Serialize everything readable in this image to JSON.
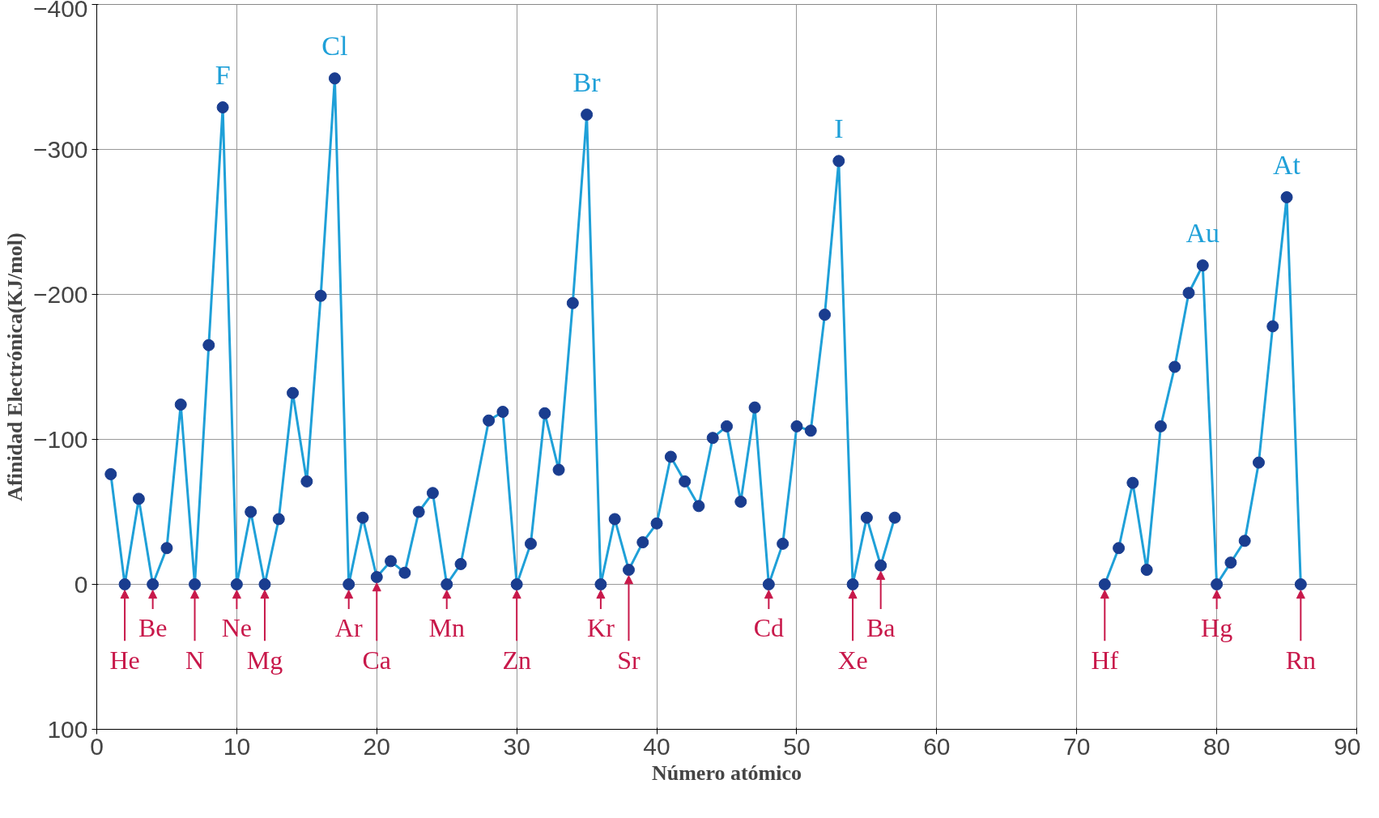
{
  "chart_data": {
    "type": "line",
    "xlabel": "Número atómico",
    "ylabel": "Afinidad Electrónica(KJ/mol)",
    "x": [
      1,
      2,
      3,
      4,
      5,
      6,
      7,
      8,
      9,
      10,
      11,
      12,
      13,
      14,
      15,
      16,
      17,
      18,
      19,
      20,
      21,
      22,
      23,
      24,
      25,
      26,
      28,
      29,
      30,
      31,
      32,
      33,
      34,
      35,
      36,
      37,
      38,
      39,
      40,
      41,
      42,
      43,
      44,
      45,
      46,
      47,
      48,
      49,
      50,
      51,
      52,
      53,
      54,
      55,
      56,
      57,
      64,
      72,
      73,
      74,
      75,
      76,
      77,
      78,
      79,
      80,
      81,
      82,
      83,
      84,
      85,
      86
    ],
    "series": [
      {
        "color": "#1fa0d8",
        "values": [
          -76,
          0,
          -59,
          0,
          -25,
          -124,
          0,
          -165,
          -329,
          0,
          -50,
          0,
          -45,
          -132,
          -71,
          -199,
          -349,
          0,
          -46,
          -5,
          -16,
          -8,
          -50,
          -63,
          0,
          -14,
          -113,
          -119,
          0,
          -28,
          -118,
          -79,
          -194,
          -324,
          0,
          -45,
          -10,
          -29,
          -42,
          -88,
          -71,
          -54,
          -101,
          -109,
          -57,
          -122,
          0,
          -28,
          -109,
          -106,
          -186,
          -292,
          0,
          -46,
          -13,
          -46,
          null,
          0,
          -25,
          -70,
          -10,
          -109,
          -150,
          -201,
          -220,
          0,
          -15,
          -30,
          -84,
          -178,
          -267,
          0
        ]
      }
    ],
    "xlim": [
      0,
      90
    ],
    "xticks": [
      0,
      10,
      20,
      30,
      40,
      50,
      60,
      70,
      80,
      90
    ],
    "ylim": [
      100,
      -400
    ],
    "yticks": [
      -400,
      -300,
      -200,
      -100,
      0,
      100
    ],
    "grid": true,
    "marker": "circle",
    "line_style": "solid",
    "annotations": [
      {
        "text": "F",
        "x": 9,
        "y": -329
      },
      {
        "text": "Cl",
        "x": 17,
        "y": -349
      },
      {
        "text": "Br",
        "x": 35,
        "y": -324
      },
      {
        "text": "I",
        "x": 53,
        "y": -292
      },
      {
        "text": "Au",
        "x": 79,
        "y": -220
      },
      {
        "text": "At",
        "x": 85,
        "y": -267
      },
      {
        "text": "He",
        "x": 2,
        "y": 0
      },
      {
        "text": "Be",
        "x": 4,
        "y": 0
      },
      {
        "text": "N",
        "x": 7,
        "y": 0
      },
      {
        "text": "Ne",
        "x": 10,
        "y": 0
      },
      {
        "text": "Mg",
        "x": 12,
        "y": 0
      },
      {
        "text": "Ar",
        "x": 18,
        "y": 0
      },
      {
        "text": "Ca",
        "x": 20,
        "y": -5
      },
      {
        "text": "Mn",
        "x": 25,
        "y": 0
      },
      {
        "text": "Zn",
        "x": 30,
        "y": 0
      },
      {
        "text": "Kr",
        "x": 36,
        "y": 0
      },
      {
        "text": "Sr",
        "x": 38,
        "y": -10
      },
      {
        "text": "Cd",
        "x": 48,
        "y": 0
      },
      {
        "text": "Xe",
        "x": 54,
        "y": 0
      },
      {
        "text": "Ba",
        "x": 56,
        "y": -13
      },
      {
        "text": "Hf",
        "x": 72,
        "y": 0
      },
      {
        "text": "Hg",
        "x": 80,
        "y": 0
      },
      {
        "text": "Rn",
        "x": 86,
        "y": 0
      }
    ]
  }
}
